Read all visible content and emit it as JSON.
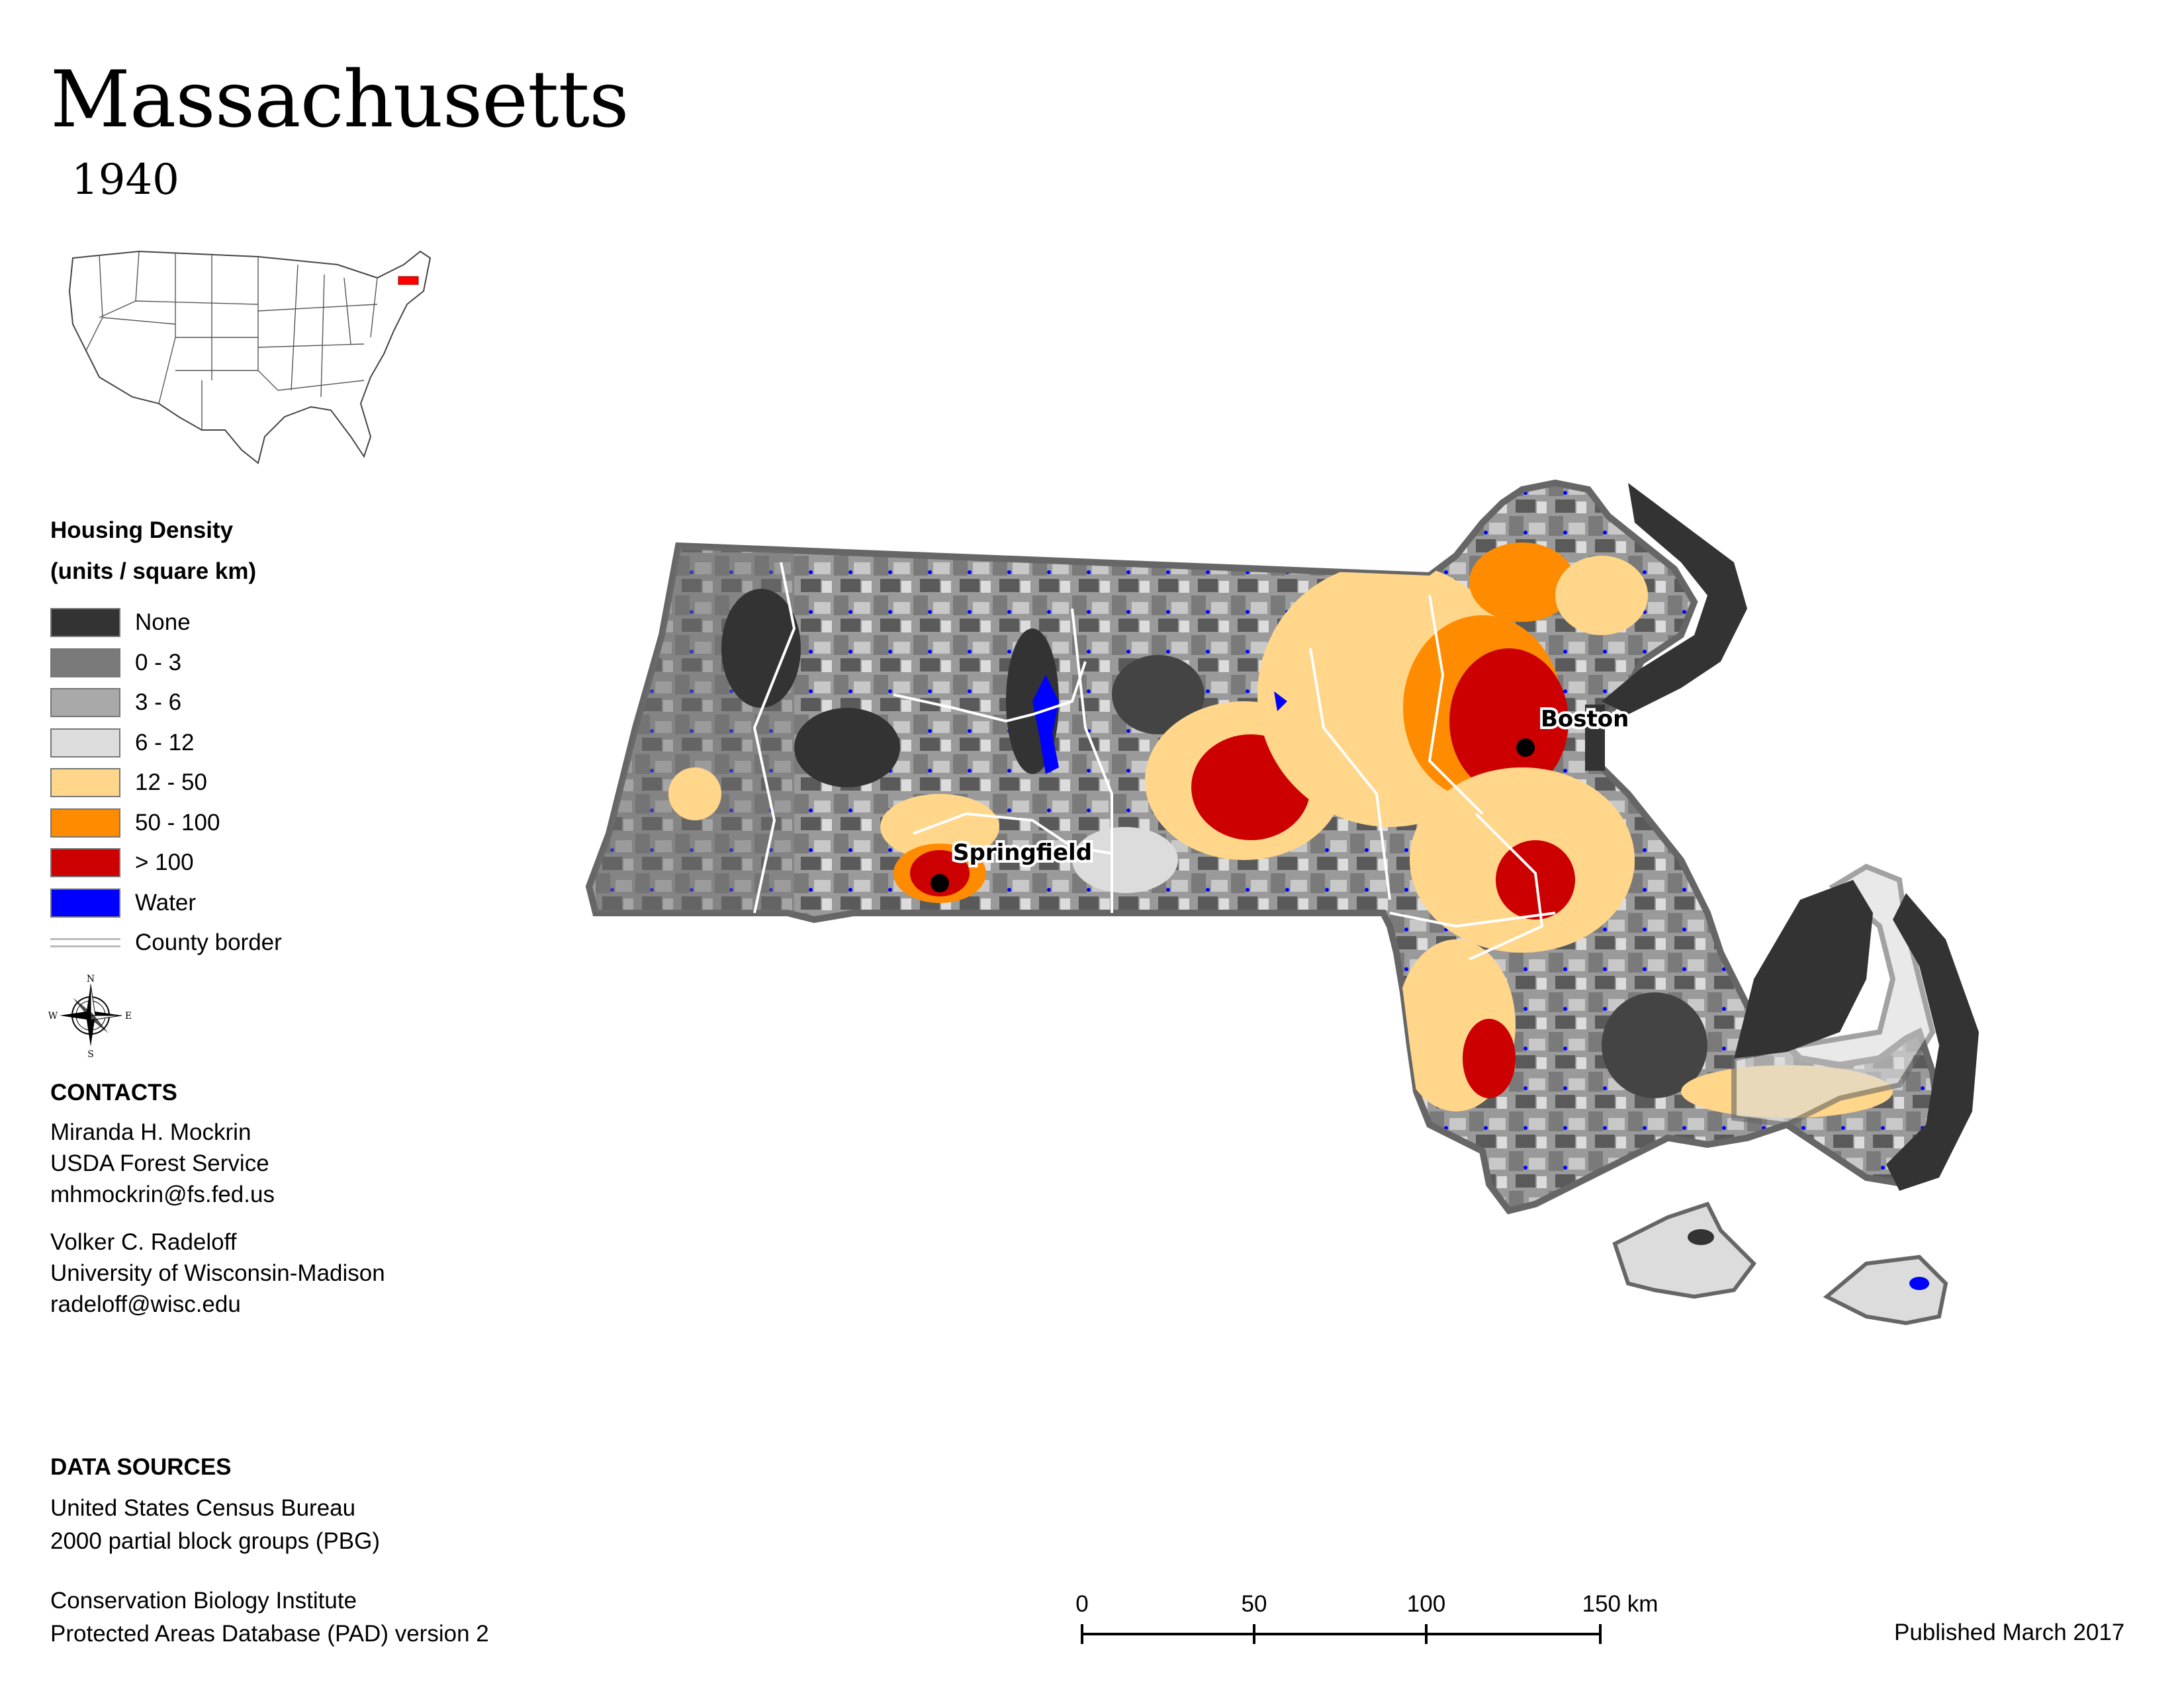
{
  "title": "Massachusetts",
  "year": "1940",
  "legend": {
    "title_line1": "Housing Density",
    "title_line2": "(units / square km)",
    "items": [
      {
        "label": "None",
        "color": "#333333"
      },
      {
        "label": "0 - 3",
        "color": "#7a7a7a"
      },
      {
        "label": "3 - 6",
        "color": "#a9a9a9"
      },
      {
        "label": "6 - 12",
        "color": "#dcdcdc"
      },
      {
        "label": "12 - 50",
        "color": "#ffd68a"
      },
      {
        "label": "50 - 100",
        "color": "#ff8c00"
      },
      {
        "label": "> 100",
        "color": "#cc0000"
      },
      {
        "label": "Water",
        "color": "#0000ff"
      },
      {
        "label": "County border",
        "color": "#bbbbbb",
        "line": true
      }
    ]
  },
  "compass": {
    "n": "N",
    "s": "S",
    "e": "E",
    "w": "W"
  },
  "contacts": {
    "heading": "CONTACTS",
    "person1": [
      "Miranda H. Mockrin",
      "USDA Forest Service",
      "mhmockrin@fs.fed.us"
    ],
    "person2": [
      "Volker C. Radeloff",
      "University of Wisconsin-Madison",
      "radeloff@wisc.edu"
    ]
  },
  "sources": {
    "heading": "DATA SOURCES",
    "source1": [
      "United States Census Bureau",
      "2000 partial block groups (PBG)"
    ],
    "source2": [
      "Conservation Biology Institute",
      "Protected Areas Database (PAD) version 2"
    ]
  },
  "cities": [
    {
      "name": "Boston"
    },
    {
      "name": "Springfield"
    }
  ],
  "scale": {
    "labels": [
      "0",
      "50",
      "100",
      "150 km"
    ]
  },
  "published": "Published March 2017",
  "inset_highlight_color": "#ff0000"
}
